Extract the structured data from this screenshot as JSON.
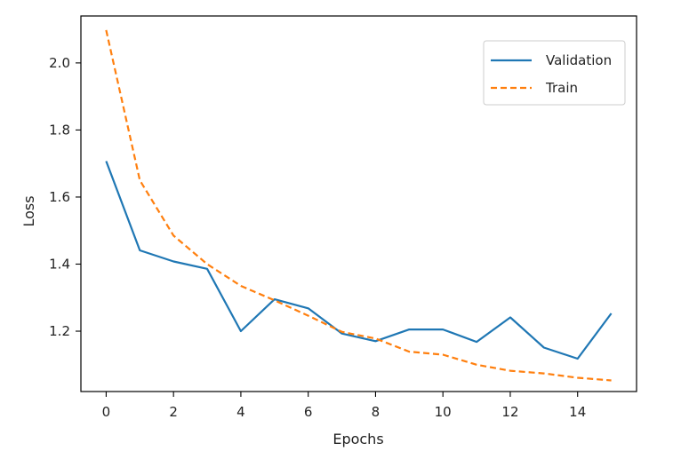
{
  "chart_data": {
    "type": "line",
    "xlabel": "Epochs",
    "ylabel": "Loss",
    "xlim": [
      -0.75,
      15.75
    ],
    "ylim": [
      1.02,
      2.14
    ],
    "xticks": [
      0,
      2,
      4,
      6,
      8,
      10,
      12,
      14
    ],
    "xtick_labels": [
      "0",
      "2",
      "4",
      "6",
      "8",
      "10",
      "12",
      "14"
    ],
    "yticks": [
      1.2,
      1.4,
      1.6,
      1.8,
      2.0
    ],
    "ytick_labels": [
      "1.2",
      "1.4",
      "1.6",
      "1.8",
      "2.0"
    ],
    "grid": false,
    "legend_position": "top-right",
    "x": [
      0,
      1,
      2,
      3,
      4,
      5,
      6,
      7,
      8,
      9,
      10,
      11,
      12,
      13,
      14,
      15
    ],
    "series": [
      {
        "name": "Validation",
        "color": "#1f77b4",
        "style": "solid",
        "values": [
          1.707,
          1.441,
          1.408,
          1.386,
          1.2,
          1.295,
          1.268,
          1.193,
          1.17,
          1.205,
          1.205,
          1.168,
          1.241,
          1.151,
          1.118,
          1.253
        ]
      },
      {
        "name": "Train",
        "color": "#ff7f0e",
        "style": "dashed",
        "values": [
          2.098,
          1.65,
          1.485,
          1.4,
          1.335,
          1.292,
          1.246,
          1.198,
          1.178,
          1.139,
          1.13,
          1.1,
          1.082,
          1.074,
          1.061,
          1.053
        ]
      }
    ]
  }
}
